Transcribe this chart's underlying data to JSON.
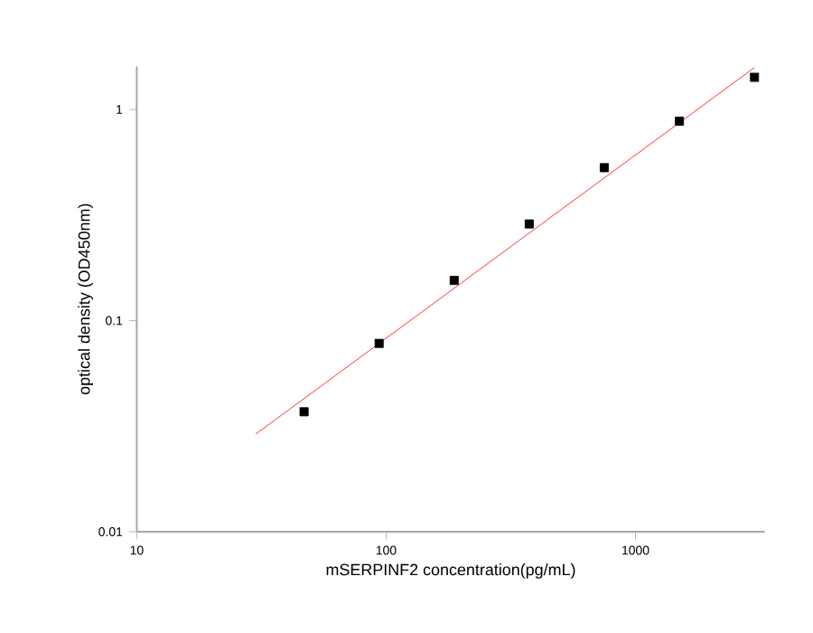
{
  "chart_data": {
    "type": "scatter",
    "xlabel": "mSERPINF2 concentration(pg/mL)",
    "ylabel": "optical density (OD450nm)",
    "log": "xy",
    "grid": false,
    "marker": "square",
    "xlim": [
      10,
      3300
    ],
    "ylim": [
      0.01,
      1.6
    ],
    "xticks": [
      10,
      100,
      1000
    ],
    "yticks": [
      0.01,
      0.1,
      1
    ],
    "series": [
      {
        "color": "#000000",
        "x": [
          46.875,
          93.75,
          187.5,
          375,
          750,
          1500,
          3000
        ],
        "values": [
          0.037,
          0.078,
          0.155,
          0.287,
          0.53,
          0.88,
          1.42
        ]
      },
      {
        "type": "line",
        "color": "#ff0000",
        "marker": "none",
        "x": [
          30,
          3000
        ],
        "values": [
          0.029,
          1.58
        ]
      }
    ]
  }
}
